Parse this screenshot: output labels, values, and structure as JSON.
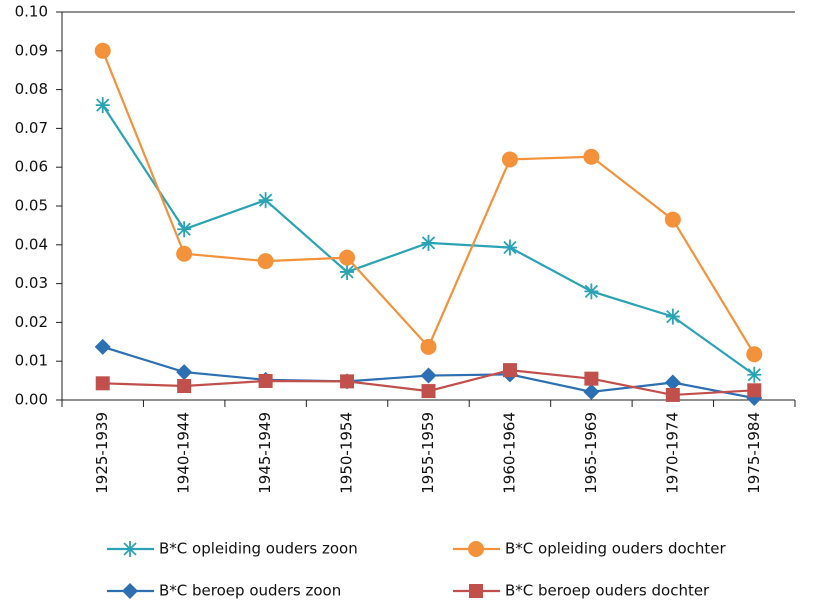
{
  "chart_data": {
    "type": "line",
    "categories": [
      "1925-1939",
      "1940-1944",
      "1945-1949",
      "1950-1954",
      "1955-1959",
      "1960-1964",
      "1965-1969",
      "1970-1974",
      "1975-1984"
    ],
    "series": [
      {
        "name": "B*C opleiding ouders zoon",
        "color": "#2aa3b4",
        "marker": "asterisk",
        "values": [
          0.076,
          0.044,
          0.0515,
          0.033,
          0.0405,
          0.0393,
          0.028,
          0.0215,
          0.0065
        ]
      },
      {
        "name": "B*C opleiding ouders dochter",
        "color": "#f3923a",
        "marker": "circle",
        "values": [
          0.09,
          0.0377,
          0.0358,
          0.0367,
          0.0137,
          0.062,
          0.0627,
          0.0465,
          0.0118
        ]
      },
      {
        "name": "B*C beroep ouders zoon",
        "color": "#2c6fb3",
        "marker": "diamond",
        "values": [
          0.0137,
          0.0072,
          0.0052,
          0.0048,
          0.0063,
          0.0066,
          0.0021,
          0.0045,
          0.0005
        ]
      },
      {
        "name": "B*C beroep ouders dochter",
        "color": "#c1504d",
        "marker": "square",
        "values": [
          0.0043,
          0.0036,
          0.0049,
          0.0048,
          0.0023,
          0.0077,
          0.0055,
          0.0013,
          0.0025
        ]
      }
    ],
    "ylim": [
      0,
      0.1
    ],
    "yticks": [
      {
        "value": 0,
        "label": "0.00"
      },
      {
        "value": 0.01,
        "label": "0.01"
      },
      {
        "value": 0.02,
        "label": "0.02"
      },
      {
        "value": 0.03,
        "label": "0.03"
      },
      {
        "value": 0.04,
        "label": "0.04"
      },
      {
        "value": 0.05,
        "label": "0.05"
      },
      {
        "value": 0.06,
        "label": "0.06"
      },
      {
        "value": 0.07,
        "label": "0.07"
      },
      {
        "value": 0.08,
        "label": "0.08"
      },
      {
        "value": 0.09,
        "label": "0.09"
      },
      {
        "value": 0.1,
        "label": "0.10"
      }
    ],
    "legend": "bottom"
  }
}
